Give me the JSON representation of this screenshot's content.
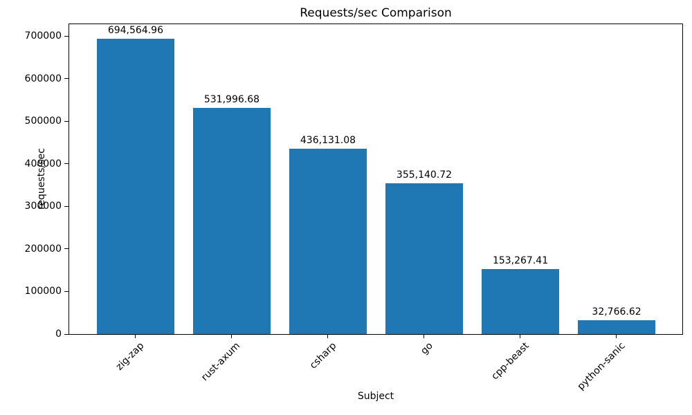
{
  "chart_data": {
    "type": "bar",
    "title": "Requests/sec Comparison",
    "xlabel": "Subject",
    "ylabel": "requests/sec",
    "categories": [
      "zig-zap",
      "rust-axum",
      "csharp",
      "go",
      "cpp-beast",
      "python-sanic"
    ],
    "values": [
      694564.96,
      531996.68,
      436131.08,
      355140.72,
      153267.41,
      32766.62
    ],
    "value_labels": [
      "694,564.96",
      "531,996.68",
      "436,131.08",
      "355,140.72",
      "153,267.41",
      "32,766.62"
    ],
    "yticks": [
      0,
      100000,
      200000,
      300000,
      400000,
      500000,
      600000,
      700000
    ],
    "ylim": [
      0,
      730000
    ],
    "xlim": [
      -0.69,
      5.69
    ],
    "bar_width": 0.8,
    "bar_color": "#1f77b4",
    "grid": false,
    "xtick_rotation_deg": 45
  }
}
